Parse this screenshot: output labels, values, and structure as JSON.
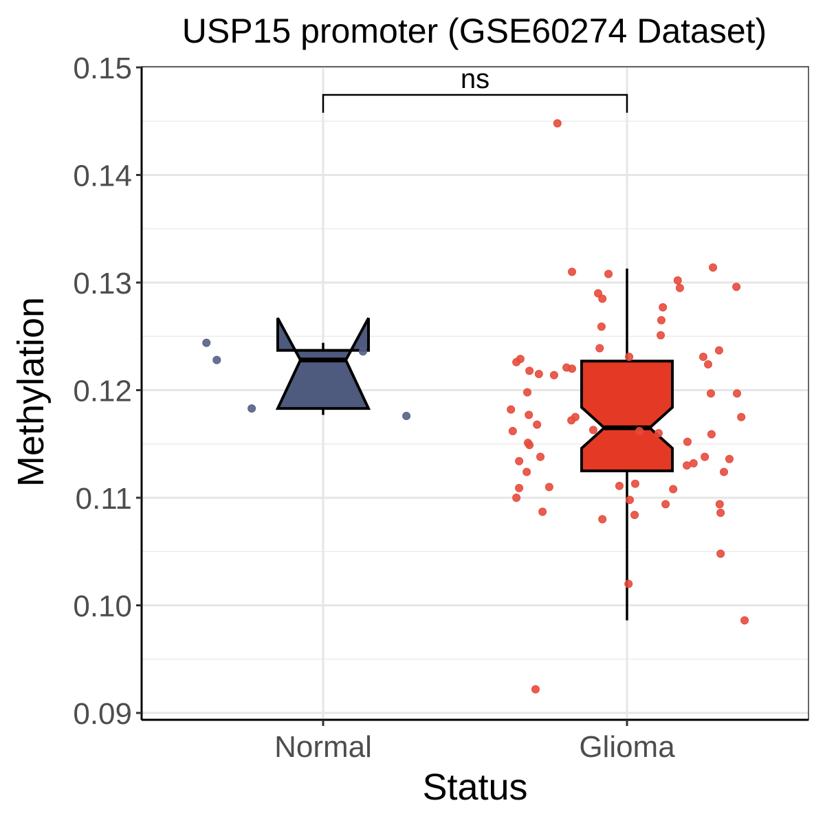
{
  "chart_data": {
    "type": "box",
    "title": "USP15 promoter (GSE60274 Dataset)",
    "xlabel": "Status",
    "ylabel": "Methylation",
    "ylim": [
      0.09,
      0.15
    ],
    "y_ticks": [
      "0.09",
      "0.10",
      "0.11",
      "0.12",
      "0.13",
      "0.14",
      "0.15"
    ],
    "y_tick_values": [
      0.09,
      0.1,
      0.11,
      0.12,
      0.13,
      0.14,
      0.15
    ],
    "categories": [
      "Normal",
      "Glioma"
    ],
    "grid": true,
    "significance": {
      "label": "ns",
      "from": "Normal",
      "to": "Glioma",
      "y": 0.1475
    },
    "series": [
      {
        "name": "Normal",
        "fill": "#4E5A7E",
        "point_color": "#55618A",
        "box": {
          "whisker_low": 0.1177,
          "q1": 0.1183,
          "median": 0.1228,
          "q3": 0.1237,
          "whisker_high": 0.1244,
          "notch_low": 0.1183,
          "notch_high": 0.1267
        },
        "points": [
          {
            "x": -0.384,
            "y": 0.1244
          },
          {
            "x": -0.35,
            "y": 0.1228
          },
          {
            "x": -0.235,
            "y": 0.1183
          },
          {
            "x": 0.131,
            "y": 0.1236
          },
          {
            "x": 0.274,
            "y": 0.1176
          }
        ]
      },
      {
        "name": "Glioma",
        "fill": "#E43A25",
        "point_color": "#E64B3C",
        "box": {
          "whisker_low": 0.0986,
          "q1": 0.1125,
          "median": 0.1165,
          "q3": 0.1227,
          "whisker_high": 0.1313,
          "notch_low": 0.1146,
          "notch_high": 0.1184
        },
        "points": [
          {
            "x": -0.229,
            "y": 0.1448
          },
          {
            "x": -0.181,
            "y": 0.131
          },
          {
            "x": -0.061,
            "y": 0.1308
          },
          {
            "x": 0.283,
            "y": 0.1314
          },
          {
            "x": 0.167,
            "y": 0.1302
          },
          {
            "x": -0.095,
            "y": 0.129
          },
          {
            "x": 0.174,
            "y": 0.1295
          },
          {
            "x": 0.36,
            "y": 0.1296
          },
          {
            "x": -0.081,
            "y": 0.1285
          },
          {
            "x": 0.118,
            "y": 0.1277
          },
          {
            "x": -0.084,
            "y": 0.1259
          },
          {
            "x": 0.113,
            "y": 0.1265
          },
          {
            "x": 0.111,
            "y": 0.1251
          },
          {
            "x": -0.09,
            "y": 0.1239
          },
          {
            "x": 0.303,
            "y": 0.1237
          },
          {
            "x": 0.251,
            "y": 0.1231
          },
          {
            "x": 0.007,
            "y": 0.1231
          },
          {
            "x": -0.351,
            "y": 0.1229
          },
          {
            "x": -0.364,
            "y": 0.1226
          },
          {
            "x": 0.267,
            "y": 0.1224
          },
          {
            "x": -0.199,
            "y": 0.1221
          },
          {
            "x": -0.181,
            "y": 0.122
          },
          {
            "x": -0.321,
            "y": 0.1218
          },
          {
            "x": -0.29,
            "y": 0.1215
          },
          {
            "x": -0.24,
            "y": 0.1214
          },
          {
            "x": -0.328,
            "y": 0.1198
          },
          {
            "x": 0.276,
            "y": 0.1197
          },
          {
            "x": 0.362,
            "y": 0.1197
          },
          {
            "x": -0.382,
            "y": 0.1182
          },
          {
            "x": -0.323,
            "y": 0.1177
          },
          {
            "x": -0.17,
            "y": 0.1175
          },
          {
            "x": -0.183,
            "y": 0.1172
          },
          {
            "x": 0.376,
            "y": 0.1175
          },
          {
            "x": -0.296,
            "y": 0.1168
          },
          {
            "x": -0.376,
            "y": 0.1162
          },
          {
            "x": -0.111,
            "y": 0.1163
          },
          {
            "x": 0.041,
            "y": 0.1162
          },
          {
            "x": 0.104,
            "y": 0.116
          },
          {
            "x": 0.278,
            "y": 0.1159
          },
          {
            "x": 0.199,
            "y": 0.1152
          },
          {
            "x": -0.326,
            "y": 0.1151
          },
          {
            "x": -0.321,
            "y": 0.1149
          },
          {
            "x": 0.256,
            "y": 0.1138
          },
          {
            "x": -0.355,
            "y": 0.1134
          },
          {
            "x": -0.285,
            "y": 0.1138
          },
          {
            "x": 0.337,
            "y": 0.1136
          },
          {
            "x": 0.219,
            "y": 0.1132
          },
          {
            "x": 0.197,
            "y": 0.113
          },
          {
            "x": -0.33,
            "y": 0.1124
          },
          {
            "x": 0.319,
            "y": 0.1124
          },
          {
            "x": 0.027,
            "y": 0.1113
          },
          {
            "x": -0.355,
            "y": 0.1109
          },
          {
            "x": -0.256,
            "y": 0.111
          },
          {
            "x": -0.025,
            "y": 0.1111
          },
          {
            "x": 0.152,
            "y": 0.1108
          },
          {
            "x": -0.364,
            "y": 0.11
          },
          {
            "x": 0.009,
            "y": 0.1098
          },
          {
            "x": 0.305,
            "y": 0.1094
          },
          {
            "x": 0.127,
            "y": 0.1094
          },
          {
            "x": -0.278,
            "y": 0.1087
          },
          {
            "x": 0.308,
            "y": 0.1086
          },
          {
            "x": 0.025,
            "y": 0.1084
          },
          {
            "x": -0.081,
            "y": 0.108
          },
          {
            "x": 0.308,
            "y": 0.1048
          },
          {
            "x": 0.005,
            "y": 0.102
          },
          {
            "x": 0.387,
            "y": 0.0986
          },
          {
            "x": -0.301,
            "y": 0.0922
          }
        ]
      }
    ]
  }
}
